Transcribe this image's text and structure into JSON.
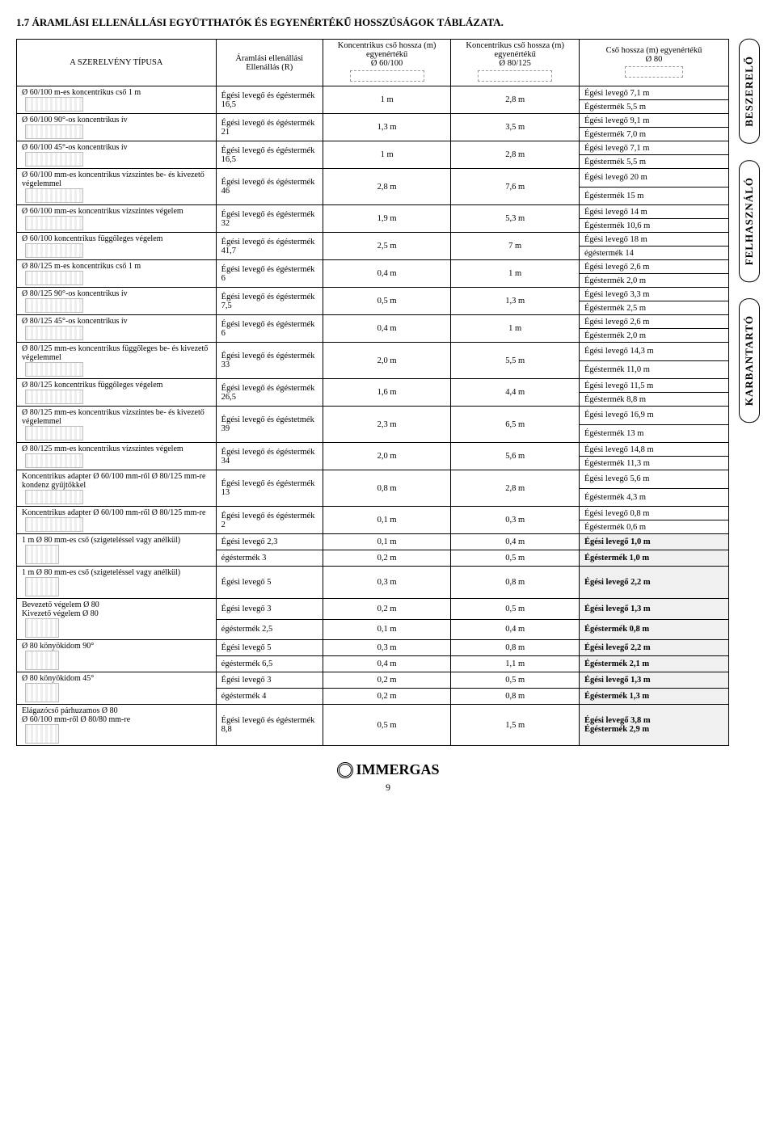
{
  "section_title": "1.7 ÁRAMLÁSI ELLENÁLLÁSI EGYÜTTHATÓK ÉS EGYENÉRTÉKŰ HOSSZÚSÁGOK TÁBLÁZATA.",
  "header": {
    "type": "A SZERELVÉNY TÍPUSA",
    "r": "Áramlási ellenállási Ellenállás (R)",
    "c60_top": "Koncentrikus cső hossza (m) egyenértékű",
    "c60_sub": "Ø 60/100",
    "c80_top": "Koncentrikus cső hossza (m) egyenértékű",
    "c80_sub": "Ø 80/125",
    "eq_top": "Cső hossza (m) egyenértékű",
    "eq_sub": "Ø 80"
  },
  "side_tabs": [
    "BESZERELŐ",
    "FELHASZNÁLÓ",
    "KARBANTARTÓ"
  ],
  "rows": [
    {
      "type": "Ø 60/100 m-es koncentrikus cső 1 m",
      "r": "Égési levegő és égéstermék 16,5",
      "c60": "1 m",
      "c80": "2,8 m",
      "eq": [
        "Égési levegő 7,1 m",
        "Égéstermék 5,5 m"
      ]
    },
    {
      "type": "Ø 60/100 90°-os koncentrikus ív",
      "r": "Égési levegő és égéstermék 21",
      "c60": "1,3 m",
      "c80": "3,5 m",
      "eq": [
        "Égési levegő 9,1 m",
        "Égéstermék 7,0 m"
      ]
    },
    {
      "type": "Ø 60/100 45°-os koncentrikus ív",
      "r": "Égési levegő és égéstermék 16,5",
      "c60": "1 m",
      "c80": "2,8 m",
      "eq": [
        "Égési levegő 7,1 m",
        "Égéstermék 5,5 m"
      ]
    },
    {
      "type": "Ø 60/100 mm-es koncentrikus vízszintes be- és kivezető végelemmel",
      "r": "Égési levegő és égéstermék 46",
      "c60": "2,8 m",
      "c80": "7,6 m",
      "eq": [
        "Égési levegő 20 m",
        "Égéstermék 15 m"
      ]
    },
    {
      "type": "Ø 60/100 mm-es koncentrikus vízszintes végelem",
      "r": "Égési levegő és égéstermék 32",
      "c60": "1,9 m",
      "c80": "5,3 m",
      "eq": [
        "Égési levegő 14 m",
        "Égéstermék 10,6 m"
      ]
    },
    {
      "type": "Ø 60/100 koncentrikus függőleges végelem",
      "r": "Égési levegő és égéstermék 41,7",
      "c60": "2,5 m",
      "c80": "7 m",
      "eq": [
        "Égési levegő 18 m",
        "égéstermék 14"
      ]
    },
    {
      "type": "Ø 80/125 m-es koncentrikus cső 1 m",
      "r": "Égési levegő és égéstermék 6",
      "c60": "0,4 m",
      "c80": "1 m",
      "eq": [
        "Égési levegő 2,6 m",
        "Égéstermék 2,0 m"
      ]
    },
    {
      "type": "Ø 80/125 90°-os koncentrikus ív",
      "r": "Égési levegő és égéstermék 7,5",
      "c60": "0,5 m",
      "c80": "1,3 m",
      "eq": [
        "Égési levegő 3,3 m",
        "Égéstermék 2,5 m"
      ]
    },
    {
      "type": "Ø 80/125 45°-os koncentrikus ív",
      "r": "Égési levegő és égéstermék 6",
      "c60": "0,4 m",
      "c80": "1 m",
      "eq": [
        "Égési levegő 2,6 m",
        "Égéstermék 2,0 m"
      ]
    },
    {
      "type": "Ø 80/125 mm-es koncentrikus függőleges be- és kivezető végelemmel",
      "r": "Égési levegő és égéstermék 33",
      "c60": "2,0 m",
      "c80": "5,5 m",
      "eq": [
        "Égési levegő 14,3 m",
        "Égéstermék 11,0 m"
      ]
    },
    {
      "type": "Ø 80/125 koncentrikus függőleges végelem",
      "r": "Égési levegő és égéstermék 26,5",
      "c60": "1,6 m",
      "c80": "4,4 m",
      "eq": [
        "Égési levegő 11,5 m",
        "Égéstermék 8,8 m"
      ]
    },
    {
      "type": "Ø 80/125 mm-es koncentrikus vízszintes be- és kivezető végelemmel",
      "r": "Égési levegő és égéstetmék 39",
      "c60": "2,3 m",
      "c80": "6,5 m",
      "eq": [
        "Égési levegő 16,9 m",
        "Égéstermék 13 m"
      ]
    },
    {
      "type": "Ø 80/125 mm-es koncentrikus vízszintes végelem",
      "r": "Égési levegő és égéstermék 34",
      "c60": "2,0 m",
      "c80": "5,6 m",
      "eq": [
        "Égési levegő 14,8 m",
        "Égéstermék 11,3 m"
      ]
    },
    {
      "type": "Koncentrikus adapter Ø 60/100 mm-ről Ø 80/125 mm-re kondenz gyűjtőkkel",
      "r": "Égési levegő és égéstermék 13",
      "c60": "0,8 m",
      "c80": "2,8 m",
      "eq": [
        "Égési levegő 5,6 m",
        "Égéstermék 4,3 m"
      ]
    },
    {
      "type": "Koncentrikus adapter Ø 60/100 mm-ről Ø 80/125 mm-re",
      "r": "Égési levegő és égéstermék 2",
      "c60": "0,1 m",
      "c80": "0,3 m",
      "eq": [
        "Égési levegő 0,8 m",
        "Égéstermék 0,6 m"
      ]
    }
  ],
  "split_rows": [
    {
      "type": "1 m Ø 80 mm-es cső (szigeteléssel vagy anélkül)",
      "lines": [
        {
          "r": "Égési levegő 2,3",
          "c60": "0,1 m",
          "c80": "0,4 m",
          "eq": "Égési levegő 1,0 m"
        },
        {
          "r": "égéstermék 3",
          "c60": "0,2 m",
          "c80": "0,5 m",
          "eq": "Égéstermék 1,0 m"
        }
      ]
    },
    {
      "type": "1 m Ø 80 mm-es cső (szigeteléssel vagy anélkül)",
      "lines": [
        {
          "r": "Égési levegő 5",
          "c60": "0,3 m",
          "c80": "0,8 m",
          "eq": "Égési levegő 2,2 m"
        }
      ]
    },
    {
      "type": "Bevezető végelem Ø 80\nKivezető végelem Ø 80",
      "lines": [
        {
          "r": "Égési levegő 3",
          "c60": "0,2 m",
          "c80": "0,5 m",
          "eq": "Égési levegő 1,3 m"
        },
        {
          "r": "égéstermék 2,5",
          "c60": "0,1 m",
          "c80": "0,4 m",
          "eq": "Égéstermék 0,8 m"
        }
      ]
    },
    {
      "type": "Ø 80 könyökidom 90°",
      "lines": [
        {
          "r": "Égési levegő 5",
          "c60": "0,3 m",
          "c80": "0,8 m",
          "eq": "Égési levegő 2,2 m"
        },
        {
          "r": "égéstermék 6,5",
          "c60": "0,4 m",
          "c80": "1,1 m",
          "eq": "Égéstermék 2,1 m"
        }
      ]
    },
    {
      "type": "Ø 80 könyökidom 45°",
      "lines": [
        {
          "r": "Égési levegő 3",
          "c60": "0,2 m",
          "c80": "0,5 m",
          "eq": "Égési levegő 1,3 m"
        },
        {
          "r": "égéstermék 4",
          "c60": "0,2 m",
          "c80": "0,8 m",
          "eq": "Égéstermék 1,3 m"
        }
      ]
    },
    {
      "type": "Elágazócső párhuzamos Ø 80\n Ø 60/100 mm-ről Ø 80/80 mm-re",
      "lines": [
        {
          "r": "Égési levegő és égéstermék 8,8",
          "c60": "0,5 m",
          "c80": "1,5 m",
          "eq": "Égési levegő 3,8 m\nÉgéstermék 2,9 m"
        }
      ]
    }
  ],
  "footer_brand": "IMMERGAS",
  "page_number": "9"
}
